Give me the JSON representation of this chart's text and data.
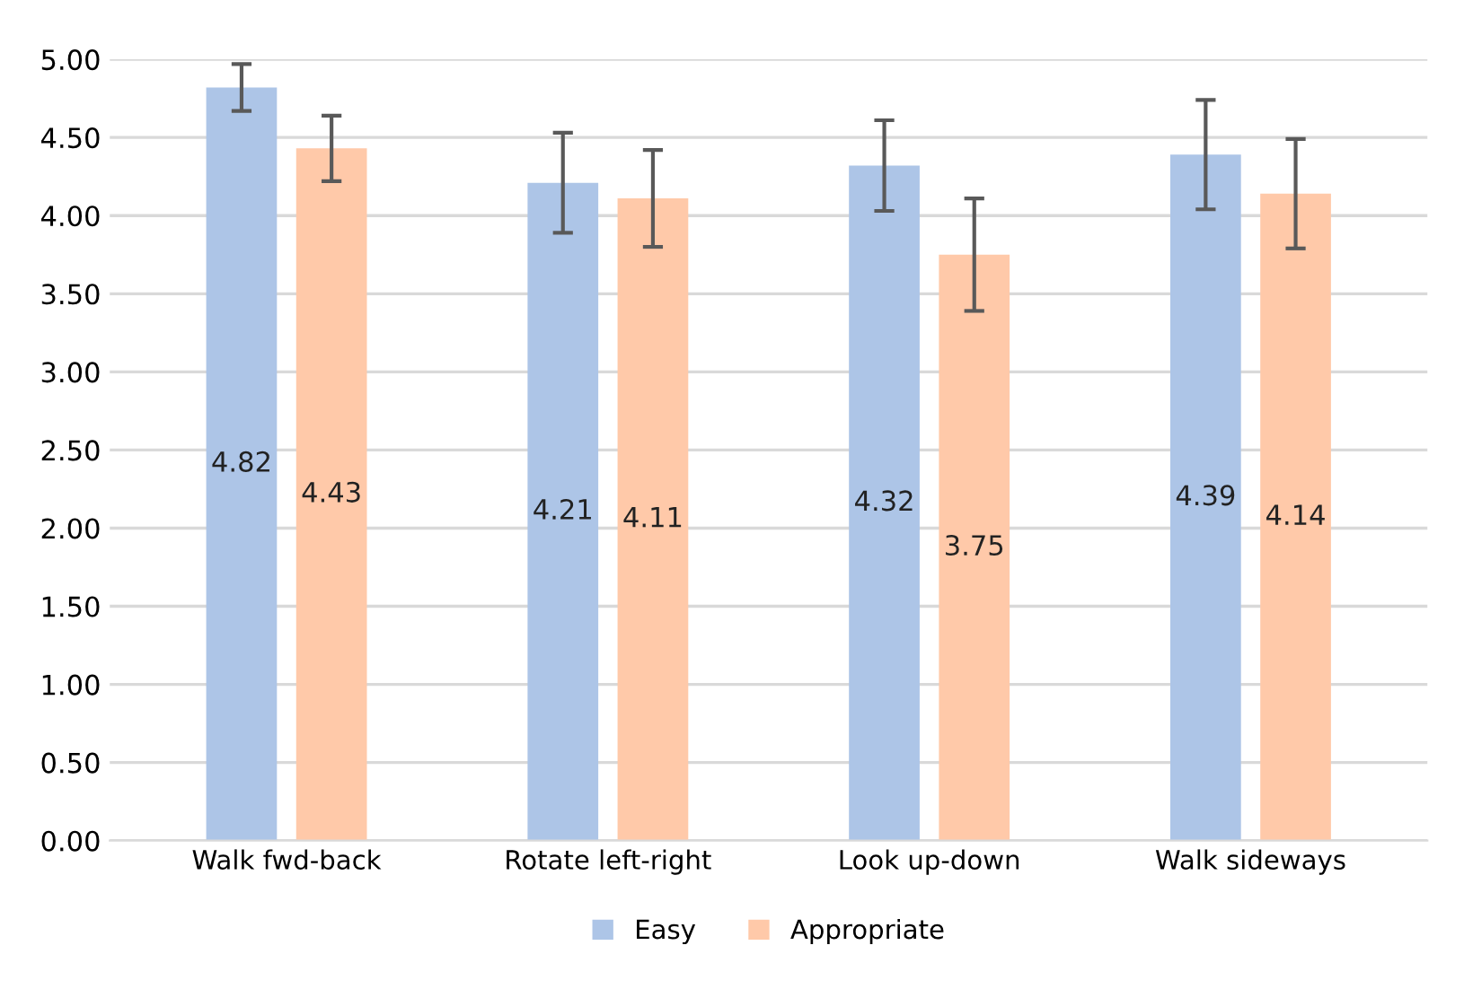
{
  "chart_data": {
    "type": "bar",
    "categories": [
      "Walk fwd-back",
      "Rotate left-right",
      "Look up-down",
      "Walk sideways"
    ],
    "series": [
      {
        "name": "Easy",
        "color": "#adc5e7",
        "values": [
          4.82,
          4.21,
          4.32,
          4.39
        ],
        "errors": [
          0.15,
          0.32,
          0.29,
          0.35
        ]
      },
      {
        "name": "Appropriate",
        "color": "#ffc9a9",
        "values": [
          4.43,
          4.11,
          3.75,
          4.14
        ],
        "errors": [
          0.21,
          0.31,
          0.36,
          0.35
        ]
      }
    ],
    "ylim": [
      0,
      5
    ],
    "yticks": [
      {
        "value": 0,
        "label": "0.00"
      },
      {
        "value": 0.5,
        "label": "0.50"
      },
      {
        "value": 1,
        "label": "1.00"
      },
      {
        "value": 1.5,
        "label": "1.50"
      },
      {
        "value": 2,
        "label": "2.00"
      },
      {
        "value": 2.5,
        "label": "2.50"
      },
      {
        "value": 3,
        "label": "3.00"
      },
      {
        "value": 3.5,
        "label": "3.50"
      },
      {
        "value": 4,
        "label": "4.00"
      },
      {
        "value": 4.5,
        "label": "4.50"
      },
      {
        "value": 5,
        "label": "5.00"
      }
    ],
    "grid": "y",
    "legend": "bottom",
    "data_labels": true
  }
}
